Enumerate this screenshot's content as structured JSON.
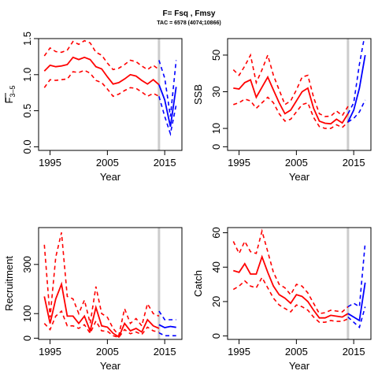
{
  "title": "F= Fsq , Fmsy",
  "subtitle": "TAC = 6578 (4074;10866)",
  "colors": {
    "historical": "#ff0000",
    "projection": "#0000ff",
    "current_year_line": "#cccccc",
    "frame": "#000000"
  },
  "chart_data": [
    {
      "type": "line",
      "ylabel": "F3-5",
      "ylabel_main": "F",
      "ylabel_sub": "3–5",
      "xlabel": "Year",
      "xlim": [
        1993,
        2018
      ],
      "ylim": [
        -0.05,
        1.5
      ],
      "xticks": [
        "1995",
        "2005",
        "2015"
      ],
      "yticks": [
        "0.0",
        "0.5",
        "1.0",
        "1.5"
      ],
      "current_year": 2014,
      "historical": {
        "x": [
          1994,
          1995,
          1996,
          1997,
          1998,
          1999,
          2000,
          2001,
          2002,
          2003,
          2004,
          2005,
          2006,
          2007,
          2008,
          2009,
          2010,
          2011,
          2012,
          2013,
          2014
        ],
        "median": [
          1.05,
          1.13,
          1.11,
          1.12,
          1.14,
          1.24,
          1.21,
          1.24,
          1.21,
          1.11,
          1.08,
          0.97,
          0.87,
          0.89,
          0.94,
          1.0,
          0.98,
          0.92,
          0.87,
          0.93,
          0.86
        ],
        "lower": [
          0.82,
          0.93,
          0.92,
          0.93,
          0.94,
          1.04,
          1.03,
          1.06,
          1.02,
          0.92,
          0.89,
          0.8,
          0.7,
          0.73,
          0.78,
          0.82,
          0.81,
          0.76,
          0.7,
          0.74,
          0.7
        ],
        "upper": [
          1.26,
          1.37,
          1.32,
          1.31,
          1.34,
          1.46,
          1.42,
          1.47,
          1.44,
          1.31,
          1.27,
          1.16,
          1.07,
          1.09,
          1.14,
          1.2,
          1.18,
          1.12,
          1.07,
          1.13,
          1.07
        ]
      },
      "projection": {
        "x": [
          2014,
          2015,
          2016,
          2017
        ],
        "median": [
          0.86,
          0.65,
          0.28,
          0.83
        ],
        "lower": [
          0.7,
          0.42,
          0.18,
          0.58
        ],
        "upper": [
          1.2,
          0.95,
          0.42,
          1.2
        ]
      }
    },
    {
      "type": "line",
      "ylabel": "SSB",
      "xlabel": "Year",
      "xlim": [
        1993,
        2018
      ],
      "ylim": [
        -2,
        59
      ],
      "xticks": [
        "1995",
        "2005",
        "2015"
      ],
      "yticks": [
        "0",
        "10",
        "30",
        "50"
      ],
      "current_year": 2014,
      "historical": {
        "x": [
          1994,
          1995,
          1996,
          1997,
          1998,
          1999,
          2000,
          2001,
          2002,
          2003,
          2004,
          2005,
          2006,
          2007,
          2008,
          2009,
          2010,
          2011,
          2012,
          2013,
          2014
        ],
        "median": [
          32,
          31.5,
          35,
          36.5,
          27,
          32.5,
          38,
          31,
          24,
          18,
          20,
          25,
          30,
          32,
          21,
          14,
          12.8,
          12.5,
          15,
          13,
          18
        ],
        "lower": [
          23,
          24,
          26,
          25,
          21,
          24,
          27,
          24,
          18,
          14,
          15,
          19,
          23,
          24,
          16,
          11,
          10,
          10,
          12,
          10.5,
          13.5
        ],
        "upper": [
          42,
          39,
          44,
          50,
          35,
          42,
          50,
          39,
          31,
          23,
          25,
          31,
          38,
          39,
          27,
          18,
          16.5,
          16.7,
          19.5,
          17,
          22
        ]
      },
      "projection": {
        "x": [
          2014,
          2015,
          2016,
          2017
        ],
        "median": [
          13.5,
          20,
          32,
          50
        ],
        "lower": [
          13.5,
          15.5,
          19,
          25.5
        ],
        "upper": [
          18,
          24,
          45,
          62
        ]
      }
    },
    {
      "type": "line",
      "ylabel": "Recruitment",
      "xlabel": "Year",
      "xlim": [
        1993,
        2018
      ],
      "ylim": [
        -5,
        450
      ],
      "xticks": [
        "1995",
        "2005",
        "2015"
      ],
      "yticks": [
        "0",
        "100",
        "300"
      ],
      "current_year": 2014,
      "historical": {
        "x": [
          1994,
          1995,
          1996,
          1997,
          1998,
          1999,
          2000,
          2001,
          2002,
          2003,
          2004,
          2005,
          2006,
          2007,
          2008,
          2009,
          2010,
          2011,
          2012,
          2013,
          2014
        ],
        "median": [
          170,
          60,
          160,
          220,
          90,
          90,
          60,
          90,
          30,
          125,
          50,
          45,
          20,
          5,
          60,
          30,
          40,
          25,
          75,
          50,
          40
        ],
        "lower": [
          60,
          35,
          90,
          110,
          50,
          50,
          40,
          55,
          20,
          70,
          30,
          28,
          10,
          3,
          35,
          18,
          25,
          15,
          45,
          30,
          25
        ],
        "upper": [
          380,
          85,
          330,
          430,
          170,
          160,
          100,
          155,
          60,
          210,
          100,
          85,
          40,
          12,
          120,
          60,
          80,
          50,
          140,
          100,
          90
        ]
      },
      "projection": {
        "x": [
          2014,
          2015,
          2016,
          2017
        ],
        "median": [
          55,
          43,
          48,
          44
        ],
        "lower": [
          22,
          10,
          10,
          10
        ],
        "upper": [
          110,
          75,
          75,
          75
        ]
      }
    },
    {
      "type": "line",
      "ylabel": "Catch",
      "xlabel": "Year",
      "xlim": [
        1993,
        2018
      ],
      "ylim": [
        -2,
        63
      ],
      "xticks": [
        "1995",
        "2005",
        "2015"
      ],
      "yticks": [
        "0",
        "20",
        "40",
        "60"
      ],
      "current_year": 2014,
      "historical": {
        "x": [
          1994,
          1995,
          1996,
          1997,
          1998,
          1999,
          2000,
          2001,
          2002,
          2003,
          2004,
          2005,
          2006,
          2007,
          2008,
          2009,
          2010,
          2011,
          2012,
          2013,
          2014
        ],
        "median": [
          38,
          37,
          42,
          36,
          36,
          46,
          37,
          29,
          24,
          22,
          19,
          24,
          23,
          20,
          15,
          10.5,
          10.5,
          12,
          11.5,
          11,
          13
        ],
        "lower": [
          27,
          29,
          32,
          29,
          28,
          34,
          28,
          22,
          18,
          16,
          14,
          18,
          17,
          15,
          11,
          8,
          8,
          9,
          8.5,
          8.5,
          10
        ],
        "upper": [
          55,
          48,
          55,
          49,
          48,
          61,
          49,
          37,
          30,
          28,
          24,
          30,
          29,
          25,
          19,
          13,
          13.5,
          15,
          14.5,
          14,
          17
        ]
      },
      "projection": {
        "x": [
          2014,
          2015,
          2016,
          2017
        ],
        "median": [
          13,
          11,
          9,
          31
        ],
        "lower": [
          11,
          8,
          5,
          17
        ],
        "upper": [
          17,
          19,
          17,
          54
        ]
      }
    }
  ]
}
